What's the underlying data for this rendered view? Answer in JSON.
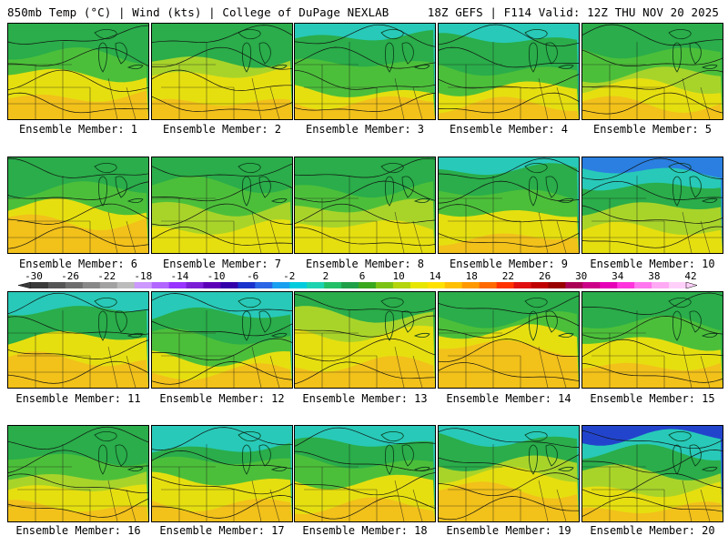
{
  "header": {
    "left": "850mb Temp (°C) | Wind (kts) | College of DuPage NEXLAB",
    "right": "18Z GEFS | F114 Valid: 12Z THU NOV 20 2025"
  },
  "colorbar": {
    "ticks": [
      "-30",
      "-26",
      "-22",
      "-18",
      "-14",
      "-10",
      "-6",
      "-2",
      "2",
      "6",
      "10",
      "14",
      "18",
      "22",
      "26",
      "30",
      "34",
      "38",
      "42"
    ],
    "colors": [
      "#3a3a3a",
      "#555555",
      "#6e6e6e",
      "#888888",
      "#a2a2a2",
      "#bcbcbc",
      "#cc99ff",
      "#b266ff",
      "#9933ff",
      "#7a1fd6",
      "#5c00b8",
      "#3300aa",
      "#1a33cc",
      "#2a66e6",
      "#1aa0f0",
      "#00ccdd",
      "#1dd4b0",
      "#22bf66",
      "#1fa048",
      "#3aa81e",
      "#7cc214",
      "#b4d40c",
      "#e6e600",
      "#ffe100",
      "#ffc000",
      "#ff9900",
      "#ff6a00",
      "#ff3300",
      "#e01010",
      "#c00000",
      "#990000",
      "#aa0055",
      "#cc0088",
      "#e600b8",
      "#ff33dd",
      "#ff77ee",
      "#ffaaf5",
      "#ffd0fa"
    ]
  },
  "members": [
    {
      "label": "Ensemble Member: 1"
    },
    {
      "label": "Ensemble Member: 2"
    },
    {
      "label": "Ensemble Member: 3"
    },
    {
      "label": "Ensemble Member: 4"
    },
    {
      "label": "Ensemble Member: 5"
    },
    {
      "label": "Ensemble Member: 6"
    },
    {
      "label": "Ensemble Member: 7"
    },
    {
      "label": "Ensemble Member: 8"
    },
    {
      "label": "Ensemble Member: 9"
    },
    {
      "label": "Ensemble Member: 10"
    },
    {
      "label": "Ensemble Member: 11"
    },
    {
      "label": "Ensemble Member: 12"
    },
    {
      "label": "Ensemble Member: 13"
    },
    {
      "label": "Ensemble Member: 14"
    },
    {
      "label": "Ensemble Member: 15"
    },
    {
      "label": "Ensemble Member: 16"
    },
    {
      "label": "Ensemble Member: 17"
    },
    {
      "label": "Ensemble Member: 18"
    },
    {
      "label": "Ensemble Member: 19"
    },
    {
      "label": "Ensemble Member: 20"
    }
  ]
}
